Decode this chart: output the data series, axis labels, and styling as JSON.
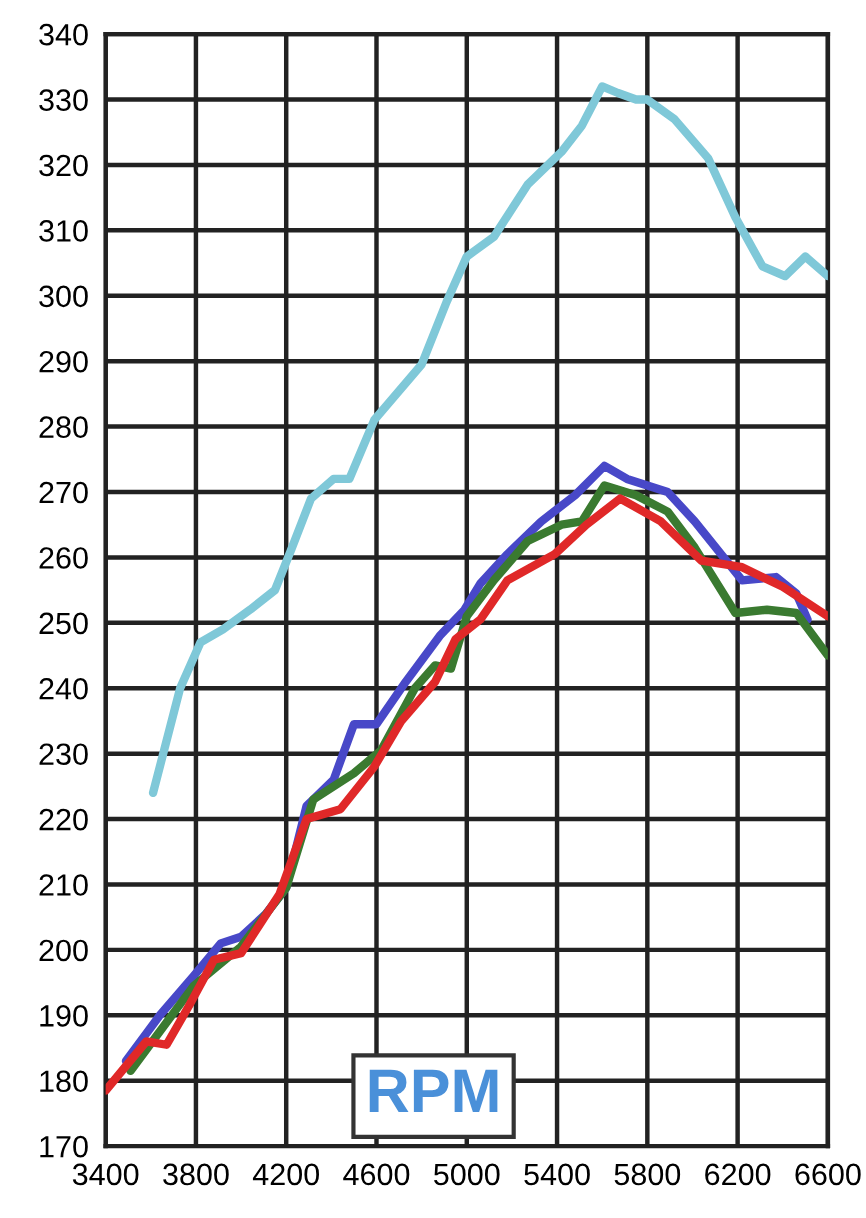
{
  "chart_data": {
    "type": "line",
    "xlim": [
      3400,
      6600
    ],
    "ylim": [
      170,
      340
    ],
    "xticks": [
      3400,
      3800,
      4200,
      4600,
      5000,
      5400,
      5800,
      6200,
      6600
    ],
    "yticks": [
      170,
      180,
      190,
      200,
      210,
      220,
      230,
      240,
      250,
      260,
      270,
      280,
      290,
      300,
      310,
      320,
      330,
      340
    ],
    "grid": true,
    "marker": "none",
    "line_style": "solid",
    "annotations": [
      "RPM"
    ],
    "series": [
      {
        "color": "#7fc8d8",
        "x": [
          3610,
          3730,
          3820,
          3920,
          4040,
          4150,
          4220,
          4310,
          4410,
          4480,
          4590,
          4800,
          4910,
          5000,
          5120,
          5270,
          5420,
          5510,
          5600,
          5670,
          5750,
          5800,
          5920,
          6070,
          6190,
          6310,
          6410,
          6500,
          6600
        ],
        "values": [
          224,
          240,
          247,
          249,
          252,
          255,
          261,
          269,
          272,
          272,
          281,
          289.5,
          299,
          306,
          309,
          317,
          322,
          326,
          332,
          331,
          330,
          330,
          327,
          321,
          312,
          304.5,
          303,
          306,
          303
        ]
      },
      {
        "color": "#4848c8",
        "x": [
          3490,
          3640,
          3790,
          3910,
          4000,
          4110,
          4200,
          4290,
          4410,
          4500,
          4600,
          4730,
          4880,
          4990,
          5060,
          5180,
          5330,
          5480,
          5610,
          5710,
          5890,
          6010,
          6220,
          6370,
          6460,
          6510
        ],
        "values": [
          183,
          190,
          196,
          201,
          202,
          205.5,
          209.5,
          222,
          226,
          234.5,
          234.5,
          241,
          248,
          252,
          256,
          260.5,
          265.5,
          269.5,
          274,
          272,
          270,
          265.5,
          256.5,
          257,
          254.5,
          250.5
        ]
      },
      {
        "color": "#3a7a30",
        "x": [
          3510,
          3790,
          4000,
          4200,
          4320,
          4500,
          4620,
          4770,
          4860,
          4930,
          5000,
          5120,
          5270,
          5420,
          5510,
          5610,
          5750,
          5890,
          6010,
          6190,
          6330,
          6460,
          6600
        ],
        "values": [
          181.5,
          194.5,
          200.5,
          209.5,
          223,
          227,
          230.5,
          240,
          243.5,
          243,
          251,
          256.5,
          262.5,
          265,
          265.5,
          271,
          269.5,
          267,
          261.5,
          251.5,
          252,
          251.5,
          245
        ]
      },
      {
        "color": "#e02828",
        "x": [
          3400,
          3580,
          3670,
          3770,
          3880,
          4000,
          4170,
          4290,
          4440,
          4590,
          4710,
          4860,
          4950,
          5060,
          5180,
          5390,
          5530,
          5680,
          5860,
          6040,
          6220,
          6400,
          6600
        ],
        "values": [
          178.5,
          186,
          185.5,
          191.5,
          198.5,
          199.5,
          208.5,
          220,
          221.5,
          228,
          235,
          241,
          247.5,
          250.5,
          256.5,
          260.5,
          265,
          269,
          265.5,
          259.5,
          258.5,
          255.5,
          251
        ]
      }
    ]
  }
}
